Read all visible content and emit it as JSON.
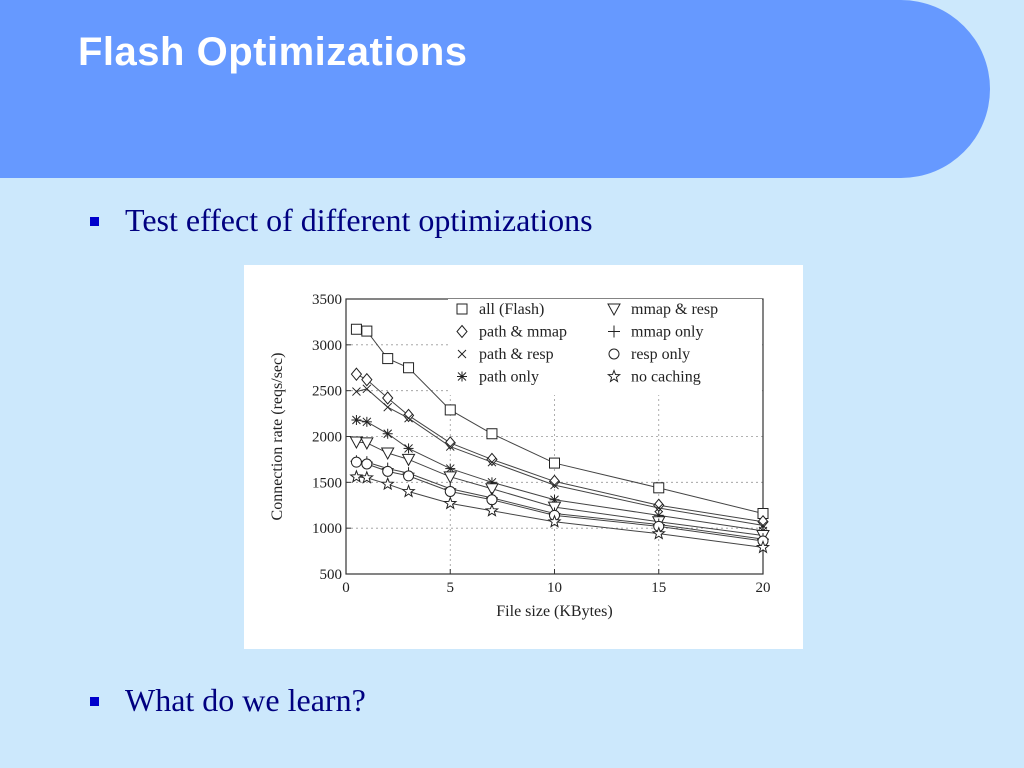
{
  "slide": {
    "title": "Flash Optimizations",
    "bullets": [
      "Test effect of different optimizations",
      "What do we learn?"
    ]
  },
  "colors": {
    "header": "#6699ff",
    "background": "#cce8fc",
    "bullet_text": "#000080",
    "bullet_mark": "#0000cc"
  },
  "chart_data": {
    "type": "line",
    "title": "",
    "xlabel": "File size (KBytes)",
    "ylabel": "Connection rate (reqs/sec)",
    "xlim": [
      0,
      20
    ],
    "ylim": [
      500,
      3500
    ],
    "xticks": [
      0,
      5,
      10,
      15,
      20
    ],
    "yticks": [
      500,
      1000,
      1500,
      2000,
      2500,
      3000,
      3500
    ],
    "grid": true,
    "legend_placement": "top",
    "x": [
      0.5,
      1,
      2,
      3,
      5,
      7,
      10,
      15,
      20
    ],
    "series": [
      {
        "name": "all (Flash)",
        "marker": "square",
        "values": [
          3170,
          3150,
          2850,
          2750,
          2290,
          2030,
          1710,
          1440,
          1160
        ]
      },
      {
        "name": "path & mmap",
        "marker": "diamond",
        "values": [
          2680,
          2620,
          2420,
          2230,
          1930,
          1750,
          1510,
          1250,
          1070
        ]
      },
      {
        "name": "path & resp",
        "marker": "x",
        "values": [
          2490,
          2520,
          2320,
          2200,
          1890,
          1720,
          1470,
          1220,
          1030
        ]
      },
      {
        "name": "path only",
        "marker": "asterisk",
        "values": [
          2180,
          2160,
          2030,
          1870,
          1650,
          1500,
          1310,
          1140,
          970
        ]
      },
      {
        "name": "mmap & resp",
        "marker": "triangle-down",
        "values": [
          1940,
          1930,
          1820,
          1750,
          1560,
          1430,
          1230,
          1070,
          920
        ]
      },
      {
        "name": "mmap only",
        "marker": "plus",
        "values": [
          1730,
          1720,
          1650,
          1600,
          1430,
          1330,
          1160,
          1040,
          880
        ]
      },
      {
        "name": "resp only",
        "marker": "circle",
        "values": [
          1720,
          1700,
          1620,
          1570,
          1400,
          1310,
          1140,
          1020,
          860
        ]
      },
      {
        "name": "no caching",
        "marker": "star",
        "values": [
          1560,
          1550,
          1480,
          1400,
          1270,
          1190,
          1070,
          940,
          790
        ]
      }
    ]
  }
}
